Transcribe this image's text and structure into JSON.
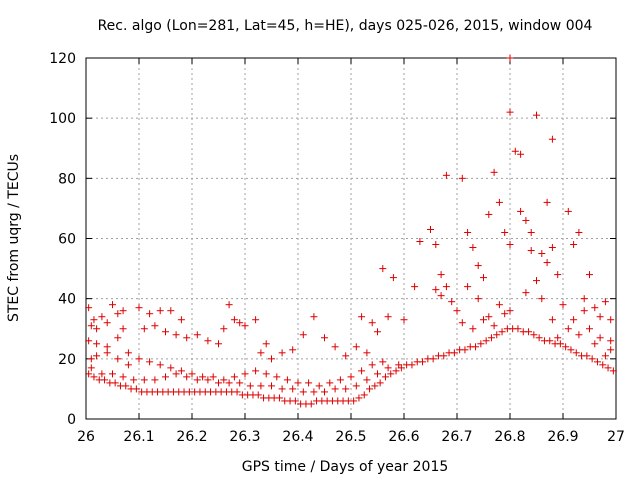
{
  "chart_data": {
    "type": "scatter",
    "title": "Rec. algo (Lon=281, Lat=45, h=HE), days 025-026, 2015, window 004",
    "xlabel": "GPS time / Days of year 2015",
    "ylabel": "STEC from uqrg / TECUs",
    "xlim": [
      26,
      27
    ],
    "ylim": [
      0,
      120
    ],
    "xticks": [
      "26",
      "26.1",
      "26.2",
      "26.3",
      "26.4",
      "26.5",
      "26.6",
      "26.7",
      "26.8",
      "26.9",
      "27"
    ],
    "yticks": [
      "0",
      "20",
      "40",
      "60",
      "80",
      "100",
      "120"
    ],
    "grid": true,
    "marker": "+",
    "color": "#dd0000",
    "series": [
      {
        "points": [
          [
            26.005,
            37
          ],
          [
            26.01,
            31
          ],
          [
            26.015,
            33
          ],
          [
            26.02,
            30
          ],
          [
            26.03,
            34
          ],
          [
            26.04,
            32
          ],
          [
            26.05,
            38
          ],
          [
            26.06,
            35
          ],
          [
            26.07,
            36
          ],
          [
            26.06,
            27
          ],
          [
            26.07,
            30
          ],
          [
            26.005,
            26
          ],
          [
            26.01,
            20
          ],
          [
            26.02,
            21
          ],
          [
            26.04,
            22
          ],
          [
            26.06,
            20
          ],
          [
            26.08,
            18
          ],
          [
            26.005,
            15
          ],
          [
            26.015,
            14
          ],
          [
            26.025,
            13
          ],
          [
            26.035,
            13
          ],
          [
            26.045,
            12
          ],
          [
            26.055,
            12
          ],
          [
            26.065,
            11
          ],
          [
            26.075,
            11
          ],
          [
            26.085,
            10
          ],
          [
            26.095,
            10
          ],
          [
            26.105,
            9
          ],
          [
            26.115,
            9
          ],
          [
            26.125,
            9
          ],
          [
            26.135,
            9
          ],
          [
            26.145,
            9
          ],
          [
            26.155,
            9
          ],
          [
            26.165,
            9
          ],
          [
            26.175,
            9
          ],
          [
            26.185,
            9
          ],
          [
            26.195,
            9
          ],
          [
            26.205,
            9
          ],
          [
            26.215,
            9
          ],
          [
            26.225,
            9
          ],
          [
            26.235,
            9
          ],
          [
            26.245,
            9
          ],
          [
            26.255,
            9
          ],
          [
            26.265,
            9
          ],
          [
            26.275,
            9
          ],
          [
            26.285,
            9
          ],
          [
            26.295,
            8
          ],
          [
            26.305,
            8
          ],
          [
            26.315,
            8
          ],
          [
            26.325,
            8
          ],
          [
            26.335,
            7
          ],
          [
            26.345,
            7
          ],
          [
            26.355,
            7
          ],
          [
            26.365,
            7
          ],
          [
            26.375,
            6
          ],
          [
            26.385,
            6
          ],
          [
            26.395,
            6
          ],
          [
            26.405,
            5
          ],
          [
            26.415,
            5
          ],
          [
            26.425,
            5
          ],
          [
            26.435,
            6
          ],
          [
            26.445,
            6
          ],
          [
            26.455,
            6
          ],
          [
            26.465,
            6
          ],
          [
            26.475,
            6
          ],
          [
            26.485,
            6
          ],
          [
            26.495,
            6
          ],
          [
            26.505,
            6
          ],
          [
            26.515,
            7
          ],
          [
            26.525,
            8
          ],
          [
            26.535,
            10
          ],
          [
            26.545,
            11
          ],
          [
            26.555,
            12
          ],
          [
            26.565,
            14
          ],
          [
            26.575,
            15
          ],
          [
            26.585,
            16
          ],
          [
            26.595,
            17
          ],
          [
            26.605,
            18
          ],
          [
            26.615,
            18
          ],
          [
            26.625,
            19
          ],
          [
            26.635,
            19
          ],
          [
            26.645,
            20
          ],
          [
            26.655,
            20
          ],
          [
            26.665,
            21
          ],
          [
            26.675,
            21
          ],
          [
            26.685,
            22
          ],
          [
            26.695,
            22
          ],
          [
            26.705,
            23
          ],
          [
            26.715,
            23
          ],
          [
            26.725,
            24
          ],
          [
            26.735,
            24
          ],
          [
            26.745,
            25
          ],
          [
            26.755,
            26
          ],
          [
            26.765,
            27
          ],
          [
            26.775,
            28
          ],
          [
            26.785,
            29
          ],
          [
            26.795,
            30
          ],
          [
            26.805,
            30
          ],
          [
            26.815,
            30
          ],
          [
            26.825,
            29
          ],
          [
            26.835,
            29
          ],
          [
            26.845,
            28
          ],
          [
            26.855,
            27
          ],
          [
            26.865,
            26
          ],
          [
            26.875,
            26
          ],
          [
            26.885,
            25
          ],
          [
            26.895,
            25
          ],
          [
            26.905,
            24
          ],
          [
            26.915,
            23
          ],
          [
            26.925,
            22
          ],
          [
            26.935,
            21
          ],
          [
            26.945,
            21
          ],
          [
            26.955,
            20
          ],
          [
            26.965,
            19
          ],
          [
            26.975,
            18
          ],
          [
            26.985,
            17
          ],
          [
            26.995,
            16
          ],
          [
            26.01,
            17
          ],
          [
            26.03,
            15
          ],
          [
            26.05,
            15
          ],
          [
            26.07,
            14
          ],
          [
            26.09,
            13
          ],
          [
            26.11,
            13
          ],
          [
            26.13,
            13
          ],
          [
            26.15,
            14
          ],
          [
            26.17,
            15
          ],
          [
            26.19,
            14
          ],
          [
            26.21,
            13
          ],
          [
            26.23,
            13
          ],
          [
            26.25,
            12
          ],
          [
            26.27,
            12
          ],
          [
            26.29,
            12
          ],
          [
            26.31,
            11
          ],
          [
            26.33,
            11
          ],
          [
            26.35,
            11
          ],
          [
            26.37,
            10
          ],
          [
            26.39,
            10
          ],
          [
            26.41,
            9
          ],
          [
            26.43,
            9
          ],
          [
            26.45,
            9
          ],
          [
            26.47,
            10
          ],
          [
            26.49,
            10
          ],
          [
            26.51,
            11
          ],
          [
            26.53,
            13
          ],
          [
            26.55,
            15
          ],
          [
            26.57,
            17
          ],
          [
            26.59,
            18
          ],
          [
            26.02,
            25
          ],
          [
            26.04,
            24
          ],
          [
            26.08,
            22
          ],
          [
            26.1,
            20
          ],
          [
            26.12,
            19
          ],
          [
            26.14,
            18
          ],
          [
            26.16,
            17
          ],
          [
            26.18,
            16
          ],
          [
            26.2,
            15
          ],
          [
            26.22,
            14
          ],
          [
            26.24,
            14
          ],
          [
            26.26,
            13
          ],
          [
            26.28,
            14
          ],
          [
            26.3,
            15
          ],
          [
            26.32,
            16
          ],
          [
            26.34,
            15
          ],
          [
            26.36,
            14
          ],
          [
            26.38,
            13
          ],
          [
            26.4,
            12
          ],
          [
            26.42,
            12
          ],
          [
            26.44,
            11
          ],
          [
            26.46,
            12
          ],
          [
            26.48,
            13
          ],
          [
            26.5,
            14
          ],
          [
            26.52,
            16
          ],
          [
            26.54,
            18
          ],
          [
            26.56,
            19
          ],
          [
            26.1,
            37
          ],
          [
            26.12,
            35
          ],
          [
            26.14,
            36
          ],
          [
            26.16,
            36
          ],
          [
            26.18,
            33
          ],
          [
            26.11,
            30
          ],
          [
            26.13,
            31
          ],
          [
            26.15,
            29
          ],
          [
            26.17,
            28
          ],
          [
            26.19,
            27
          ],
          [
            26.21,
            28
          ],
          [
            26.23,
            26
          ],
          [
            26.25,
            25
          ],
          [
            26.27,
            38
          ],
          [
            26.26,
            30
          ],
          [
            26.28,
            33
          ],
          [
            26.29,
            32
          ],
          [
            26.3,
            31
          ],
          [
            26.32,
            33
          ],
          [
            26.34,
            25
          ],
          [
            26.33,
            22
          ],
          [
            26.35,
            20
          ],
          [
            26.37,
            22
          ],
          [
            26.39,
            23
          ],
          [
            26.41,
            28
          ],
          [
            26.43,
            34
          ],
          [
            26.45,
            27
          ],
          [
            26.47,
            24
          ],
          [
            26.49,
            21
          ],
          [
            26.51,
            24
          ],
          [
            26.52,
            34
          ],
          [
            26.54,
            32
          ],
          [
            26.55,
            29
          ],
          [
            26.53,
            22
          ],
          [
            26.56,
            50
          ],
          [
            26.58,
            47
          ],
          [
            26.6,
            33
          ],
          [
            26.62,
            44
          ],
          [
            26.57,
            34
          ],
          [
            26.63,
            59
          ],
          [
            26.65,
            63
          ],
          [
            26.66,
            58
          ],
          [
            26.67,
            48
          ],
          [
            26.68,
            81
          ],
          [
            26.66,
            43
          ],
          [
            26.67,
            41
          ],
          [
            26.68,
            44
          ],
          [
            26.69,
            39
          ],
          [
            26.7,
            36
          ],
          [
            26.71,
            80
          ],
          [
            26.72,
            62
          ],
          [
            26.73,
            57
          ],
          [
            26.74,
            51
          ],
          [
            26.75,
            47
          ],
          [
            26.76,
            68
          ],
          [
            26.77,
            82
          ],
          [
            26.78,
            72
          ],
          [
            26.79,
            62
          ],
          [
            26.8,
            58
          ],
          [
            26.72,
            44
          ],
          [
            26.74,
            40
          ],
          [
            26.76,
            34
          ],
          [
            26.78,
            38
          ],
          [
            26.8,
            36
          ],
          [
            26.71,
            32
          ],
          [
            26.73,
            30
          ],
          [
            26.75,
            33
          ],
          [
            26.77,
            31
          ],
          [
            26.79,
            35
          ],
          [
            26.8,
            102
          ],
          [
            26.8,
            120
          ],
          [
            26.81,
            89
          ],
          [
            26.82,
            88
          ],
          [
            26.85,
            101
          ],
          [
            26.88,
            93
          ],
          [
            26.87,
            72
          ],
          [
            26.91,
            69
          ],
          [
            26.83,
            66
          ],
          [
            26.84,
            62
          ],
          [
            26.82,
            69
          ],
          [
            26.84,
            56
          ],
          [
            26.86,
            55
          ],
          [
            26.88,
            57
          ],
          [
            26.85,
            46
          ],
          [
            26.87,
            52
          ],
          [
            26.89,
            48
          ],
          [
            26.83,
            42
          ],
          [
            26.86,
            40
          ],
          [
            26.9,
            38
          ],
          [
            26.92,
            58
          ],
          [
            26.93,
            62
          ],
          [
            26.95,
            48
          ],
          [
            26.94,
            40
          ],
          [
            26.96,
            37
          ],
          [
            26.97,
            34
          ],
          [
            26.98,
            39
          ],
          [
            26.99,
            33
          ],
          [
            26.95,
            30
          ],
          [
            26.93,
            28
          ],
          [
            26.91,
            30
          ],
          [
            26.89,
            27
          ],
          [
            26.97,
            27
          ],
          [
            26.99,
            23
          ],
          [
            26.96,
            25
          ],
          [
            26.98,
            21
          ],
          [
            26.99,
            26
          ],
          [
            26.92,
            33
          ],
          [
            26.94,
            36
          ],
          [
            26.88,
            33
          ]
        ]
      }
    ]
  }
}
